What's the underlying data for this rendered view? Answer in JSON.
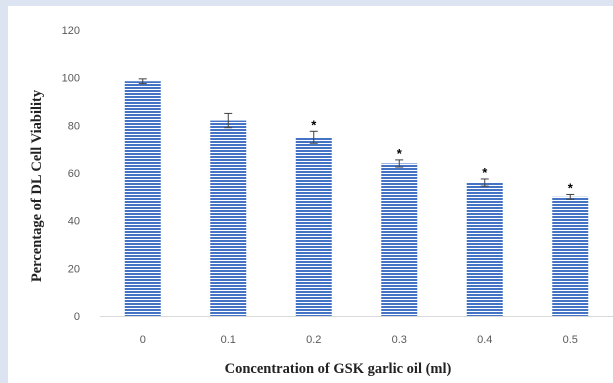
{
  "colors": {
    "background": "#dce3f1",
    "panel": "#ffffff",
    "bar_fill": "#4472c4",
    "bar_stripe": "#ffffff",
    "axis": "#d9d9d9",
    "error_bar": "#404040"
  },
  "chart_data": {
    "type": "bar",
    "title": "",
    "xlabel": "Concentration  of GSK garlic oil (ml)",
    "ylabel": "Percentage of DL Cell Viability",
    "categories": [
      "0",
      "0.1",
      "0.2",
      "0.3",
      "0.4",
      "0.5"
    ],
    "values": [
      98.5,
      82,
      75,
      64,
      56,
      50
    ],
    "error": [
      1,
      3,
      2.5,
      1.5,
      1.5,
      1
    ],
    "significance": [
      "",
      "",
      "*",
      "*",
      "*",
      "*"
    ],
    "ylim": [
      0,
      120
    ],
    "yticks": [
      0,
      20,
      40,
      60,
      80,
      100,
      120
    ],
    "grid": false,
    "legend": "none"
  }
}
